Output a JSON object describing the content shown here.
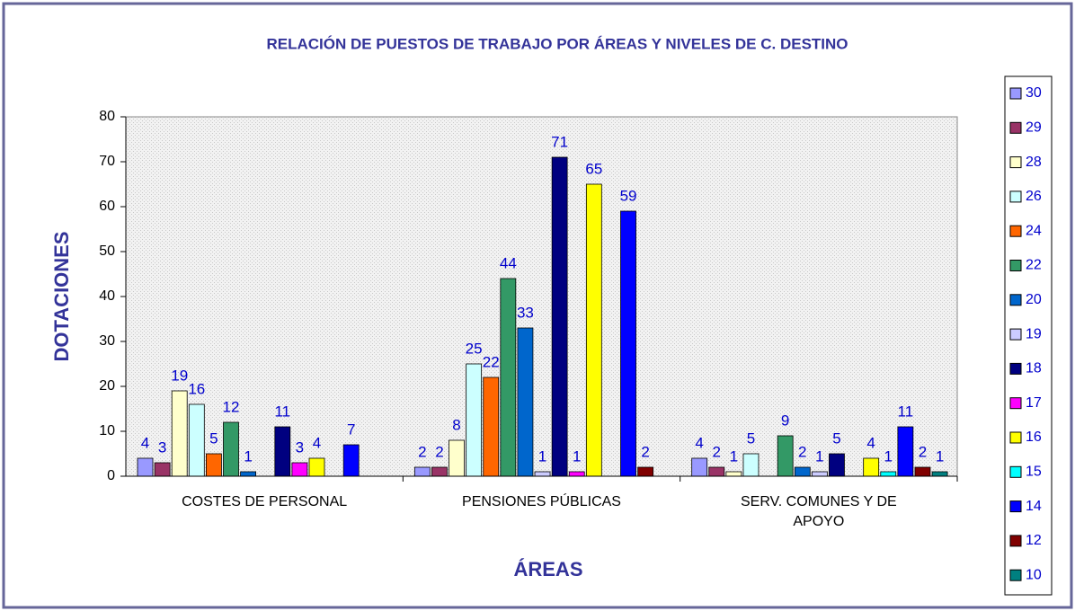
{
  "chart_data": {
    "type": "bar",
    "title": "RELACIÓN DE PUESTOS DE TRABAJO POR ÁREAS Y NIVELES DE C. DESTINO",
    "xlabel": "ÁREAS",
    "ylabel": "DOTACIONES",
    "categories": [
      "COSTES DE PERSONAL",
      "PENSIONES PÚBLICAS",
      "SERV. COMUNES Y DE APOYO"
    ],
    "ylim": [
      0,
      80
    ],
    "yticks": [
      0,
      10,
      20,
      30,
      40,
      50,
      60,
      70,
      80
    ],
    "grid": false,
    "legend": "right",
    "series": [
      {
        "name": "30",
        "color": "#9999ff",
        "values": [
          4,
          2,
          4
        ]
      },
      {
        "name": "29",
        "color": "#993366",
        "values": [
          3,
          2,
          2
        ]
      },
      {
        "name": "28",
        "color": "#ffffcc",
        "values": [
          19,
          8,
          1
        ]
      },
      {
        "name": "26",
        "color": "#ccffff",
        "values": [
          16,
          25,
          5
        ]
      },
      {
        "name": "24",
        "color": "#ff6600",
        "values": [
          5,
          22,
          null
        ]
      },
      {
        "name": "22",
        "color": "#339966",
        "values": [
          12,
          44,
          9
        ]
      },
      {
        "name": "20",
        "color": "#0066cc",
        "values": [
          1,
          33,
          2
        ]
      },
      {
        "name": "19",
        "color": "#ccccff",
        "values": [
          null,
          1,
          1
        ]
      },
      {
        "name": "18",
        "color": "#000080",
        "values": [
          11,
          71,
          5
        ]
      },
      {
        "name": "17",
        "color": "#ff00ff",
        "values": [
          3,
          1,
          null
        ]
      },
      {
        "name": "16",
        "color": "#ffff00",
        "values": [
          4,
          65,
          4
        ]
      },
      {
        "name": "15",
        "color": "#00ffff",
        "values": [
          null,
          null,
          1
        ]
      },
      {
        "name": "14",
        "color": "#0000ff",
        "values": [
          7,
          59,
          11
        ]
      },
      {
        "name": "12",
        "color": "#800000",
        "values": [
          null,
          2,
          2
        ]
      },
      {
        "name": "10",
        "color": "#008080",
        "values": [
          null,
          null,
          1
        ]
      }
    ]
  }
}
